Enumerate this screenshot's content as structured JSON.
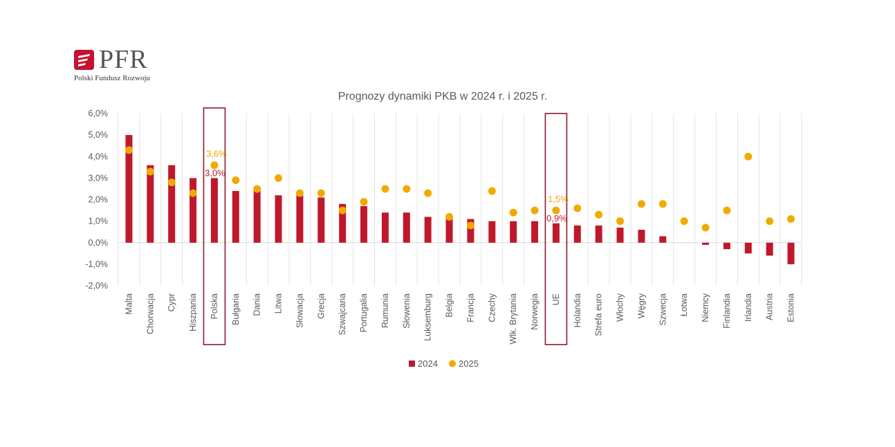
{
  "logo": {
    "name": "PFR",
    "subtitle": "Polski Fundusz Rozwoju",
    "color": "#c8102e"
  },
  "chart_data": {
    "type": "bar",
    "title": "Prognozy dynamiki PKB w 2024 r. i 2025 r.",
    "xlabel": "",
    "ylabel": "",
    "ylim": [
      -0.02,
      0.06
    ],
    "yticks": [
      "-2,0%",
      "-1,0%",
      "0,0%",
      "1,0%",
      "2,0%",
      "3,0%",
      "4,0%",
      "5,0%",
      "6,0%"
    ],
    "grid": "vertical",
    "legend_position": "bottom",
    "categories": [
      "Malta",
      "Chorwacja",
      "Cypr",
      "Hiszpania",
      "Polska",
      "Bułgaria",
      "Dania",
      "Litwa",
      "Słowacja",
      "Grecja",
      "Szwajcaria",
      "Portugalia",
      "Rumunia",
      "Słowenia",
      "Luksemburg",
      "Belgia",
      "Francja",
      "Czechy",
      "Wlk. Brytania",
      "Norwegia",
      "UE",
      "Holandia",
      "Strefa euro",
      "Włochy",
      "Węgry",
      "Szwecja",
      "Łotwa",
      "Niemcy",
      "Finlandia",
      "Irlandia",
      "Austria",
      "Estonia"
    ],
    "series": [
      {
        "name": "2024",
        "kind": "bar",
        "color": "#c0182b",
        "values": [
          0.05,
          0.036,
          0.036,
          0.03,
          0.03,
          0.024,
          0.024,
          0.022,
          0.022,
          0.021,
          0.018,
          0.017,
          0.014,
          0.014,
          0.012,
          0.011,
          0.011,
          0.01,
          0.01,
          0.01,
          0.009,
          0.008,
          0.008,
          0.007,
          0.006,
          0.003,
          0.0,
          -0.001,
          -0.003,
          -0.005,
          -0.006,
          -0.01
        ]
      },
      {
        "name": "2025",
        "kind": "dot",
        "color": "#f2a900",
        "values": [
          0.043,
          0.033,
          0.028,
          0.023,
          0.036,
          0.029,
          0.025,
          0.03,
          0.023,
          0.023,
          0.015,
          0.019,
          0.025,
          0.025,
          0.023,
          0.012,
          0.008,
          0.024,
          0.014,
          0.015,
          0.015,
          0.016,
          0.013,
          0.01,
          0.018,
          0.018,
          0.01,
          0.007,
          0.015,
          0.04,
          0.01,
          0.011
        ]
      }
    ],
    "highlights": [
      {
        "category": "Polska",
        "label_2025": "3,6%",
        "label_2024": "3,0%"
      },
      {
        "category": "UE",
        "label_2025": "1,5%",
        "label_2024": "0,9%"
      }
    ],
    "highlight_color": "#8b1a2b"
  }
}
